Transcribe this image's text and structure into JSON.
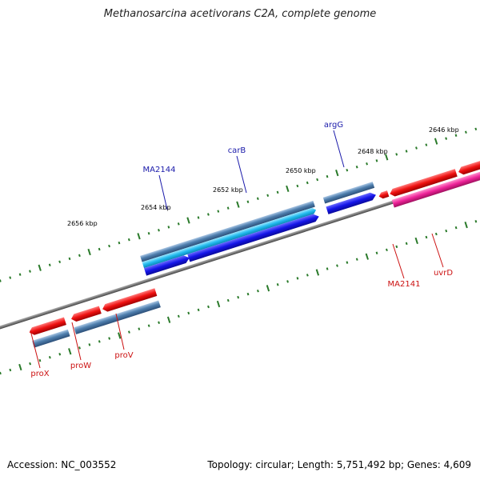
{
  "title": "Methanosarcina acetivorans C2A, complete genome",
  "footer": {
    "accession": "Accession: NC_003552",
    "stats": "Topology: circular; Length: 5,751,492 bp; Genes: 4,609"
  },
  "colors": {
    "backbone": "#7a7a7a",
    "tick": "#2a7a2a",
    "label_forward": "#1a1aaa",
    "label_reverse": "#cc1111",
    "cds_blue": "#1a1aee",
    "cds_red": "#ee1111",
    "cds_cyan": "#22bbee",
    "cds_magenta": "#ee2299",
    "gene_steel": "#4f7fae"
  },
  "ticks": [
    {
      "label": "2656 kbp"
    },
    {
      "label": "2654 kbp"
    },
    {
      "label": "2652 kbp"
    },
    {
      "label": "2650 kbp"
    },
    {
      "label": "2648 kbp"
    },
    {
      "label": "2646 kbp"
    }
  ],
  "genes": [
    {
      "name": "MA2144",
      "strand": "forward"
    },
    {
      "name": "carB",
      "strand": "forward"
    },
    {
      "name": "argG",
      "strand": "forward"
    },
    {
      "name": "MA2141",
      "strand": "reverse"
    },
    {
      "name": "uvrD",
      "strand": "reverse"
    },
    {
      "name": "proX",
      "strand": "reverse"
    },
    {
      "name": "proW",
      "strand": "reverse"
    },
    {
      "name": "proV",
      "strand": "reverse"
    }
  ]
}
